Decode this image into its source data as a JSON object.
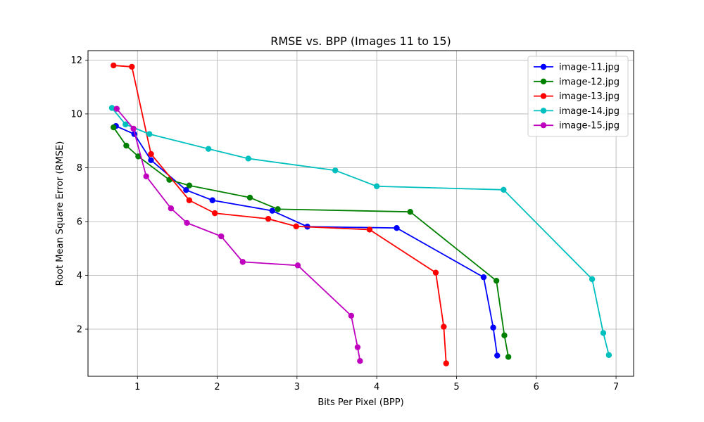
{
  "chart_data": {
    "type": "line",
    "title": "RMSE vs. BPP (Images 11 to 15)",
    "xlabel": "Bits Per Pixel (BPP)",
    "ylabel": "Root Mean Square Error (RMSE)",
    "xlim": [
      0.38,
      7.22
    ],
    "ylim": [
      0.25,
      12.35
    ],
    "xticks": [
      1,
      2,
      3,
      4,
      5,
      6,
      7
    ],
    "yticks": [
      2,
      4,
      6,
      8,
      10,
      12
    ],
    "grid": true,
    "legend_position": "upper right",
    "series": [
      {
        "name": "image-11.jpg",
        "color": "#0000ff",
        "x": [
          0.73,
          0.96,
          1.17,
          1.61,
          1.94,
          2.69,
          3.13,
          4.25,
          5.34,
          5.46,
          5.51
        ],
        "y": [
          9.55,
          9.25,
          8.28,
          7.17,
          6.79,
          6.4,
          5.81,
          5.76,
          3.93,
          2.06,
          1.02
        ]
      },
      {
        "name": "image-12.jpg",
        "color": "#008000",
        "x": [
          0.7,
          0.86,
          1.01,
          1.4,
          1.65,
          2.41,
          2.76,
          4.42,
          5.5,
          5.6,
          5.65
        ],
        "y": [
          9.5,
          8.82,
          8.42,
          7.55,
          7.34,
          6.89,
          6.46,
          6.36,
          3.8,
          1.77,
          0.97
        ]
      },
      {
        "name": "image-13.jpg",
        "color": "#ff0000",
        "x": [
          0.7,
          0.93,
          1.17,
          1.65,
          1.97,
          2.64,
          2.99,
          3.91,
          4.74,
          4.84,
          4.87
        ],
        "y": [
          11.8,
          11.75,
          8.51,
          6.79,
          6.31,
          6.1,
          5.82,
          5.7,
          4.1,
          2.09,
          0.73
        ]
      },
      {
        "name": "image-14.jpg",
        "color": "#00bfbf",
        "x": [
          0.68,
          0.85,
          1.15,
          1.89,
          2.39,
          3.48,
          4.0,
          5.59,
          6.7,
          6.84,
          6.91
        ],
        "y": [
          10.22,
          9.61,
          9.25,
          8.7,
          8.34,
          7.9,
          7.31,
          7.18,
          3.86,
          1.86,
          1.04
        ]
      },
      {
        "name": "image-15.jpg",
        "color": "#bf00bf",
        "x": [
          0.74,
          0.95,
          1.11,
          1.42,
          1.62,
          2.05,
          2.32,
          3.01,
          3.68,
          3.76,
          3.79
        ],
        "y": [
          10.19,
          9.45,
          7.68,
          6.49,
          5.95,
          5.45,
          4.5,
          4.37,
          2.5,
          1.33,
          0.82
        ]
      }
    ]
  }
}
